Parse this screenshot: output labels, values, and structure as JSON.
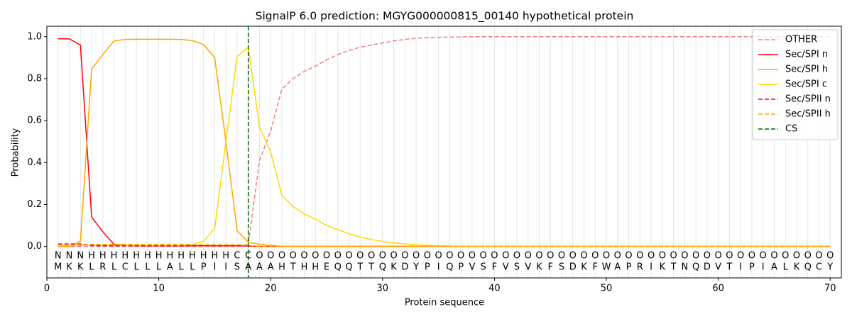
{
  "chart_data": {
    "type": "line",
    "title": "SignalP 6.0 prediction: MGYG000000815_00140 hypothetical protein",
    "x_label": "Protein sequence",
    "y_label": "Probability",
    "xlim": [
      0,
      71
    ],
    "ylim": [
      -0.15,
      1.05
    ],
    "xticks": [
      0,
      10,
      20,
      30,
      40,
      50,
      60,
      70
    ],
    "yticks": [
      {
        "value": 0,
        "label": "0.0"
      },
      0.2,
      0.4,
      0.6,
      0.8,
      {
        "value": 1,
        "label": "1.0"
      }
    ],
    "legend": "upper right",
    "residue_grid": true,
    "x": [
      1,
      2,
      3,
      4,
      5,
      6,
      7,
      8,
      9,
      10,
      11,
      12,
      13,
      14,
      15,
      16,
      17,
      18,
      19,
      20,
      21,
      22,
      23,
      24,
      25,
      26,
      27,
      28,
      29,
      30,
      31,
      32,
      33,
      34,
      35,
      36,
      37,
      38,
      39,
      40,
      41,
      42,
      43,
      44,
      45,
      46,
      47,
      48,
      49,
      50,
      51,
      52,
      53,
      54,
      55,
      56,
      57,
      58,
      59,
      60,
      61,
      62,
      63,
      64,
      65,
      66,
      67,
      68,
      69,
      70
    ],
    "sequence": [
      "M",
      "K",
      "K",
      "L",
      "R",
      "L",
      "C",
      "L",
      "L",
      "L",
      "A",
      "L",
      "L",
      "P",
      "I",
      "I",
      "S",
      "A",
      "A",
      "A",
      "H",
      "T",
      "H",
      "H",
      "E",
      "Q",
      "Q",
      "T",
      "T",
      "Q",
      "K",
      "D",
      "Y",
      "P",
      "I",
      "Q",
      "P",
      "V",
      "S",
      "F",
      "V",
      "S",
      "V",
      "K",
      "F",
      "S",
      "D",
      "K",
      "F",
      "W",
      "A",
      "P",
      "R",
      "I",
      "K",
      "T",
      "N",
      "Q",
      "D",
      "V",
      "T",
      "I",
      "P",
      "I",
      "A",
      "L",
      "K",
      "Q",
      "C",
      "Y"
    ],
    "regions": [
      "N",
      "N",
      "N",
      "H",
      "H",
      "H",
      "H",
      "H",
      "H",
      "H",
      "H",
      "H",
      "H",
      "H",
      "H",
      "H",
      "C",
      "C",
      "O",
      "O",
      "O",
      "O",
      "O",
      "O",
      "O",
      "O",
      "O",
      "O",
      "O",
      "O",
      "O",
      "O",
      "O",
      "O",
      "O",
      "O",
      "O",
      "O",
      "O",
      "O",
      "O",
      "O",
      "O",
      "O",
      "O",
      "O",
      "O",
      "O",
      "O",
      "O",
      "O",
      "O",
      "O",
      "O",
      "O",
      "O",
      "O",
      "O",
      "O",
      "O",
      "O",
      "O",
      "O",
      "O",
      "O",
      "O",
      "O",
      "O",
      "O",
      "O"
    ],
    "region_colors": {
      "N": "red",
      "H": "orange",
      "C": "gold",
      "O": "gray"
    },
    "series": [
      {
        "name": "OTHER",
        "color": "#f08080",
        "dashed": true,
        "values": [
          0,
          0,
          0,
          0,
          0,
          0,
          0,
          0,
          0,
          0,
          0,
          0,
          0,
          0,
          0,
          0,
          0,
          0.01,
          0.41,
          0.55,
          0.75,
          0.8,
          0.835,
          0.86,
          0.89,
          0.915,
          0.935,
          0.95,
          0.96,
          0.97,
          0.98,
          0.987,
          0.992,
          0.995,
          0.997,
          0.998,
          0.999,
          1,
          1,
          1,
          1,
          1,
          1,
          1,
          1,
          1,
          1,
          1,
          1,
          1,
          1,
          1,
          1,
          1,
          1,
          1,
          1,
          1,
          1,
          1,
          1,
          1,
          1,
          1,
          1,
          1,
          1,
          1,
          1,
          1
        ]
      },
      {
        "name": "Sec/SPI n",
        "color": "#ff0000",
        "dashed": false,
        "values": [
          0.99,
          0.99,
          0.96,
          0.14,
          0.07,
          0.01,
          0.005,
          0.003,
          0.003,
          0.003,
          0.003,
          0.003,
          0.003,
          0.003,
          0.003,
          0.003,
          0.003,
          0.002,
          0,
          0,
          0,
          0,
          0,
          0,
          0,
          0,
          0,
          0,
          0,
          0,
          0,
          0,
          0,
          0,
          0,
          0,
          0,
          0,
          0,
          0,
          0,
          0,
          0,
          0,
          0,
          0,
          0,
          0,
          0,
          0,
          0,
          0,
          0,
          0,
          0,
          0,
          0,
          0,
          0,
          0,
          0,
          0,
          0,
          0,
          0,
          0,
          0,
          0,
          0,
          0
        ]
      },
      {
        "name": "Sec/SPI h",
        "color": "#ffa500",
        "dashed": false,
        "values": [
          0,
          0,
          0.025,
          0.845,
          0.915,
          0.98,
          0.987,
          0.988,
          0.988,
          0.988,
          0.988,
          0.987,
          0.982,
          0.963,
          0.9,
          0.5,
          0.075,
          0.02,
          0.01,
          0.005,
          0,
          0,
          0,
          0,
          0,
          0,
          0,
          0,
          0,
          0,
          0,
          0,
          0,
          0,
          0,
          0,
          0,
          0,
          0,
          0,
          0,
          0,
          0,
          0,
          0,
          0,
          0,
          0,
          0,
          0,
          0,
          0,
          0,
          0,
          0,
          0,
          0,
          0,
          0,
          0,
          0,
          0,
          0,
          0,
          0,
          0,
          0,
          0,
          0,
          0
        ]
      },
      {
        "name": "Sec/SPI c",
        "color": "#ffd700",
        "dashed": false,
        "values": [
          0.005,
          0.005,
          0.005,
          0.005,
          0.005,
          0.005,
          0.005,
          0.005,
          0.005,
          0.005,
          0.005,
          0.005,
          0.008,
          0.025,
          0.085,
          0.5,
          0.905,
          0.95,
          0.57,
          0.45,
          0.245,
          0.19,
          0.155,
          0.13,
          0.1,
          0.08,
          0.06,
          0.045,
          0.033,
          0.024,
          0.017,
          0.012,
          0.008,
          0.005,
          0.003,
          0.002,
          0,
          0,
          0,
          0,
          0,
          0,
          0,
          0,
          0,
          0,
          0,
          0,
          0,
          0,
          0,
          0,
          0,
          0,
          0,
          0,
          0,
          0,
          0,
          0,
          0,
          0,
          0,
          0,
          0,
          0,
          0,
          0,
          0,
          0
        ]
      },
      {
        "name": "Sec/SPII n",
        "color": "#ff0000",
        "dashed": true,
        "values": [
          0.012,
          0.012,
          0.012,
          0.005,
          0.003,
          0.003,
          0.003,
          0.003,
          0.003,
          0.003,
          0.003,
          0.003,
          0.003,
          0.003,
          0.003,
          0.003,
          0.003,
          0.002,
          0,
          0,
          0,
          0,
          0,
          0,
          0,
          0,
          0,
          0,
          0,
          0,
          0,
          0,
          0,
          0,
          0,
          0,
          0,
          0,
          0,
          0,
          0,
          0,
          0,
          0,
          0,
          0,
          0,
          0,
          0,
          0,
          0,
          0,
          0,
          0,
          0,
          0,
          0,
          0,
          0,
          0,
          0,
          0,
          0,
          0,
          0,
          0,
          0,
          0,
          0,
          0
        ]
      },
      {
        "name": "Sec/SPII h",
        "color": "#ffa500",
        "dashed": true,
        "values": [
          0.003,
          0.003,
          0.005,
          0.01,
          0.01,
          0.01,
          0.01,
          0.01,
          0.01,
          0.01,
          0.01,
          0.01,
          0.01,
          0.01,
          0.01,
          0.01,
          0.01,
          0.005,
          0,
          0,
          0,
          0,
          0,
          0,
          0,
          0,
          0,
          0,
          0,
          0,
          0,
          0,
          0,
          0,
          0,
          0,
          0,
          0,
          0,
          0,
          0,
          0,
          0,
          0,
          0,
          0,
          0,
          0,
          0,
          0,
          0,
          0,
          0,
          0,
          0,
          0,
          0,
          0,
          0,
          0,
          0,
          0,
          0,
          0,
          0,
          0,
          0,
          0,
          0,
          0
        ]
      }
    ],
    "cleavage_site": {
      "name": "CS",
      "x": 18,
      "color": "#006400"
    }
  }
}
